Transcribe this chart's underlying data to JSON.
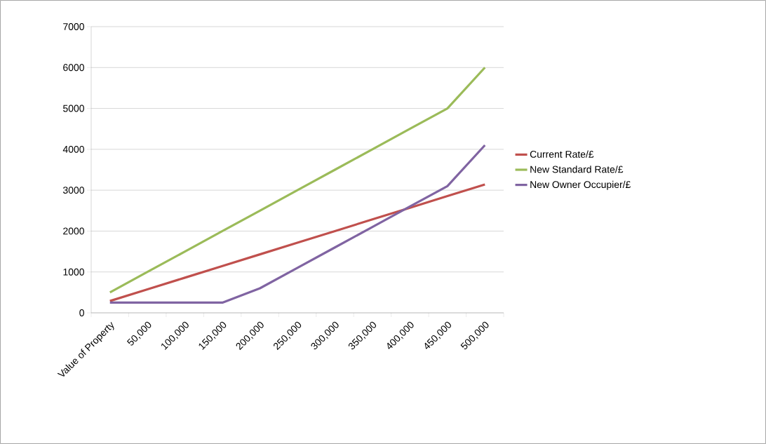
{
  "chart_data": {
    "type": "line",
    "categories": [
      "Value of Property",
      "50,000",
      "100,000",
      "150,000",
      "200,000",
      "250,000",
      "300,000",
      "350,000",
      "400,000",
      "450,000",
      "500,000"
    ],
    "series": [
      {
        "name": "Current Rate/£",
        "color": "#c0504d",
        "values": [
          290,
          575,
          860,
          1145,
          1430,
          1715,
          2000,
          2285,
          2570,
          2855,
          3140
        ]
      },
      {
        "name": "New Standard Rate/£",
        "color": "#9bbb59",
        "values": [
          500,
          1000,
          1500,
          2000,
          2500,
          3000,
          3500,
          4000,
          4500,
          5000,
          6000
        ]
      },
      {
        "name": "New Owner Occupier/£",
        "color": "#8064a2",
        "values": [
          250,
          250,
          250,
          250,
          600,
          1100,
          1600,
          2100,
          2600,
          3100,
          4100
        ]
      }
    ],
    "ylim": [
      0,
      7000
    ],
    "yticks": [
      0,
      1000,
      2000,
      3000,
      4000,
      5000,
      6000,
      7000
    ],
    "grid": "y",
    "legend": "right",
    "marker": "none",
    "line_style": "solid"
  }
}
